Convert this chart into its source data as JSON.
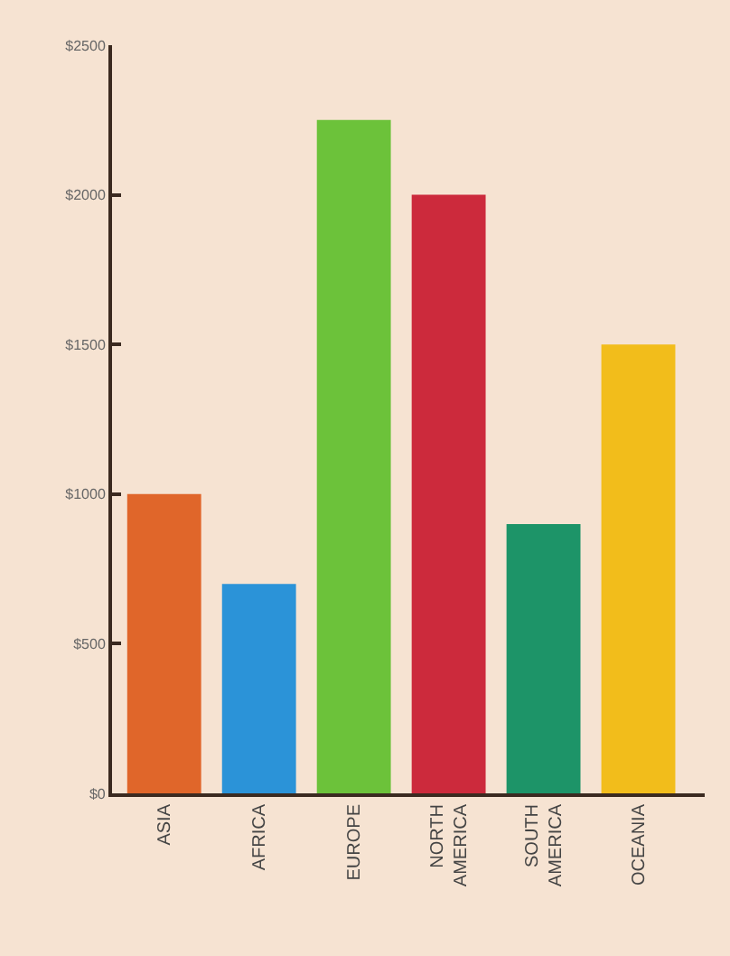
{
  "chart_data": {
    "type": "bar",
    "categories": [
      "ASIA",
      "AFRICA",
      "EUROPE",
      "NORTH AMERICA",
      "SOUTH AMERICA",
      "OCEANIA"
    ],
    "values": [
      1000,
      700,
      2250,
      2000,
      900,
      1500
    ],
    "colors": [
      "#e0662a",
      "#2b93d8",
      "#6cc23a",
      "#cc2a3c",
      "#1d9468",
      "#f2bd1b"
    ],
    "ylim": [
      0,
      2500
    ],
    "yticks": [
      {
        "value": 0,
        "label": "$0"
      },
      {
        "value": 500,
        "label": "$500"
      },
      {
        "value": 1000,
        "label": "$1000"
      },
      {
        "value": 1500,
        "label": "$1500"
      },
      {
        "value": 2000,
        "label": "$2000"
      },
      {
        "value": 2500,
        "label": "$2500"
      }
    ],
    "grid": false
  }
}
